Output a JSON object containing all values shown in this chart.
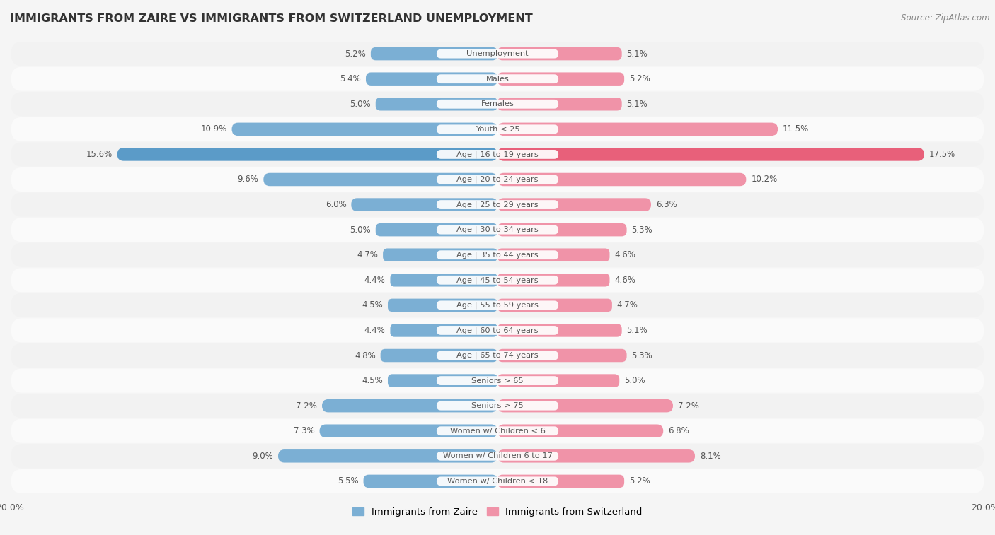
{
  "title": "IMMIGRANTS FROM ZAIRE VS IMMIGRANTS FROM SWITZERLAND UNEMPLOYMENT",
  "source": "Source: ZipAtlas.com",
  "categories": [
    "Unemployment",
    "Males",
    "Females",
    "Youth < 25",
    "Age | 16 to 19 years",
    "Age | 20 to 24 years",
    "Age | 25 to 29 years",
    "Age | 30 to 34 years",
    "Age | 35 to 44 years",
    "Age | 45 to 54 years",
    "Age | 55 to 59 years",
    "Age | 60 to 64 years",
    "Age | 65 to 74 years",
    "Seniors > 65",
    "Seniors > 75",
    "Women w/ Children < 6",
    "Women w/ Children 6 to 17",
    "Women w/ Children < 18"
  ],
  "zaire_values": [
    5.2,
    5.4,
    5.0,
    10.9,
    15.6,
    9.6,
    6.0,
    5.0,
    4.7,
    4.4,
    4.5,
    4.4,
    4.8,
    4.5,
    7.2,
    7.3,
    9.0,
    5.5
  ],
  "switzerland_values": [
    5.1,
    5.2,
    5.1,
    11.5,
    17.5,
    10.2,
    6.3,
    5.3,
    4.6,
    4.6,
    4.7,
    5.1,
    5.3,
    5.0,
    7.2,
    6.8,
    8.1,
    5.2
  ],
  "zaire_color": "#7bafd4",
  "switzerland_color": "#f093a8",
  "zaire_color_highlight": "#5b9bc8",
  "switzerland_color_highlight": "#e8607a",
  "row_bg_light": "#f2f2f2",
  "row_bg_white": "#fafafa",
  "background_color": "#f5f5f5",
  "xlim": 20.0,
  "label_zaire": "Immigrants from Zaire",
  "label_switzerland": "Immigrants from Switzerland",
  "highlight_indices": [
    4
  ]
}
